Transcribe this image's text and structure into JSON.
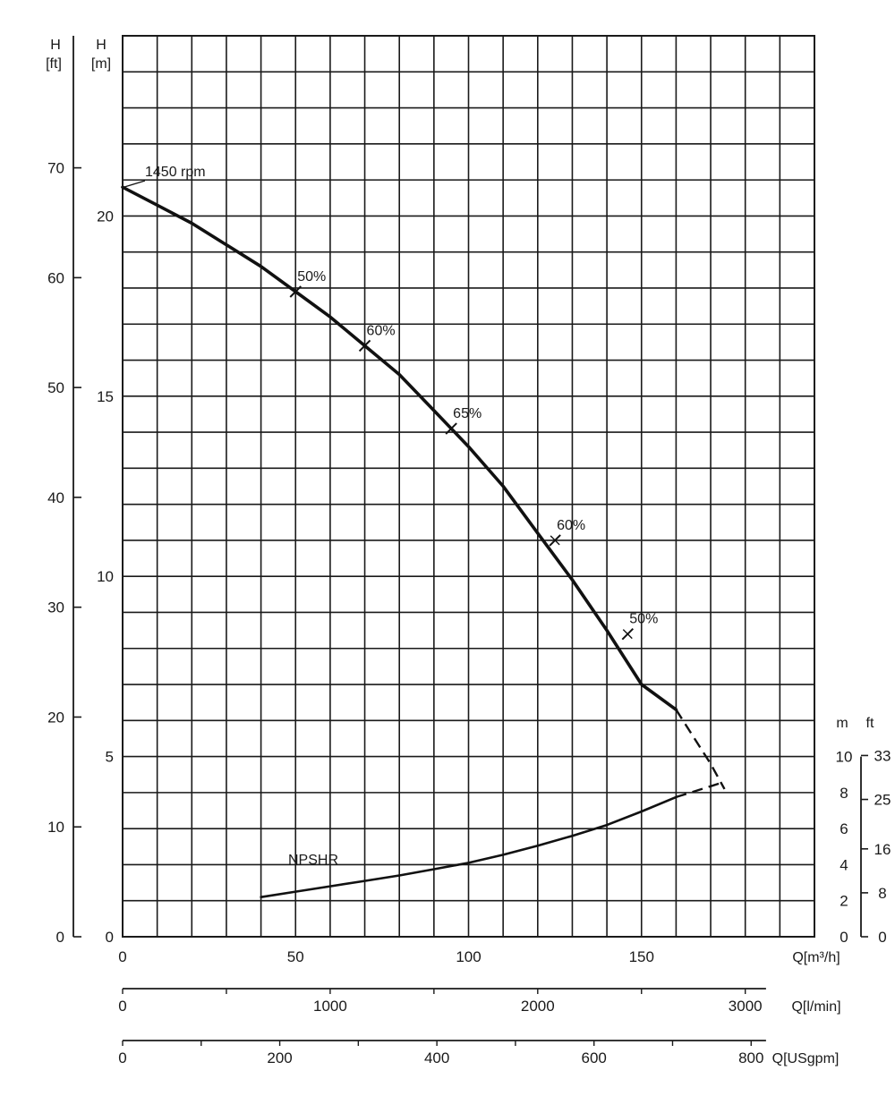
{
  "chart_data": {
    "type": "line",
    "title": "",
    "grid": true,
    "x": {
      "label": "Q[m³/h]",
      "range": [
        0,
        200
      ],
      "ticks": [
        0,
        50,
        100,
        150
      ]
    },
    "x_secondary": [
      {
        "label": "Q[l/min]",
        "factor": 16.6667,
        "ticks": [
          0,
          1000,
          2000,
          3000
        ]
      },
      {
        "label": "Q[USgpm]",
        "factor": 4.4029,
        "ticks": [
          0,
          200,
          400,
          600,
          800
        ]
      }
    ],
    "y_head_m": {
      "label_top": "H",
      "label_unit": "[m]",
      "range": [
        0,
        25
      ],
      "ticks": [
        0,
        5,
        10,
        15,
        20
      ]
    },
    "y_head_ft": {
      "label_top": "H",
      "label_unit": "[ft]",
      "ticks": [
        0,
        10,
        20,
        30,
        40,
        50,
        60,
        70
      ]
    },
    "y_npshr_m": {
      "label": "m",
      "ticks": [
        0,
        2,
        4,
        6,
        8,
        10
      ]
    },
    "y_npshr_ft": {
      "label": "ft",
      "ticks": [
        0,
        8,
        16,
        25,
        33
      ]
    },
    "series": [
      {
        "name": "1450 rpm",
        "unit": "m",
        "x": [
          0,
          10,
          20,
          30,
          40,
          50,
          60,
          70,
          80,
          90,
          100,
          110,
          120,
          130,
          140,
          150,
          160
        ],
        "y": [
          20.8,
          20.3,
          19.8,
          19.2,
          18.6,
          17.9,
          17.2,
          16.4,
          15.6,
          14.6,
          13.6,
          12.5,
          11.2,
          9.9,
          8.5,
          7.0,
          6.3
        ],
        "dashed_extension": {
          "x": [
            160,
            170,
            174
          ],
          "y": [
            6.3,
            4.8,
            4.1
          ]
        }
      },
      {
        "name": "NPSHR",
        "unit": "m",
        "x": [
          40,
          50,
          60,
          70,
          80,
          90,
          100,
          110,
          120,
          130,
          140,
          150,
          160
        ],
        "y": [
          2.2,
          2.5,
          2.8,
          3.1,
          3.4,
          3.75,
          4.1,
          4.55,
          5.05,
          5.6,
          6.2,
          6.95,
          7.75
        ],
        "dashed_extension": {
          "x": [
            160,
            170,
            174
          ],
          "y": [
            7.75,
            8.35,
            8.6
          ]
        }
      }
    ],
    "efficiency_marks": [
      {
        "label": "50%",
        "q": 50,
        "h": 17.9
      },
      {
        "label": "60%",
        "q": 70,
        "h": 16.4
      },
      {
        "label": "65%",
        "q": 95,
        "h": 14.1
      },
      {
        "label": "60%",
        "q": 125,
        "h": 11.0
      },
      {
        "label": "50%",
        "q": 146,
        "h": 8.4
      }
    ]
  }
}
